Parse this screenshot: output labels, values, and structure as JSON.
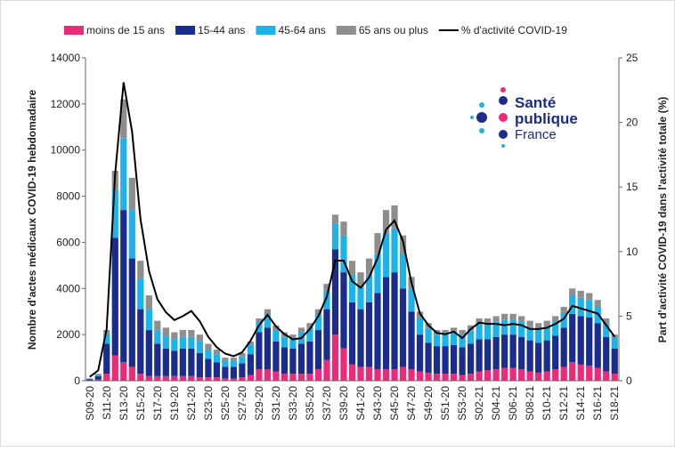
{
  "chart_data": {
    "type": "bar",
    "stacked": true,
    "y_label": "Nombre d'actes médicaux COVID-19 hebdomadaire",
    "y2_label": "Part d'activité COVID-19 dans l'activité totale (%)",
    "logo": {
      "line1": "Santé",
      "line2": "publique",
      "line3": "France"
    },
    "categories": [
      "S09-20",
      null,
      "S11-20",
      null,
      "S13-20",
      null,
      "S15-20",
      null,
      "S17-20",
      null,
      "S19-20",
      null,
      "S21-20",
      null,
      "S23-20",
      null,
      "S25-20",
      null,
      "S27-20",
      null,
      "S29-20",
      null,
      "S31-20",
      null,
      "S33-20",
      null,
      "S35-20",
      null,
      "S37-20",
      null,
      "S39-20",
      null,
      "S41-20",
      null,
      "S43-20",
      null,
      "S45-20",
      null,
      "S47-20",
      null,
      "S49-20",
      null,
      "S51-20",
      null,
      "S53-20",
      null,
      "S02-21",
      null,
      "S04-21",
      null,
      "S06-21",
      null,
      "S08-21",
      null,
      "S10-21",
      null,
      "S12-21",
      null,
      "S14-21",
      null,
      "S16-21",
      null,
      "S18-21"
    ],
    "series": [
      {
        "name": "moins de 15 ans",
        "color": "#ec2a7a",
        "values": [
          20,
          50,
          300,
          1100,
          800,
          600,
          300,
          200,
          200,
          200,
          200,
          200,
          200,
          150,
          150,
          150,
          100,
          100,
          150,
          250,
          500,
          500,
          400,
          300,
          300,
          300,
          300,
          500,
          900,
          2000,
          1400,
          700,
          600,
          600,
          500,
          500,
          500,
          600,
          500,
          400,
          350,
          300,
          300,
          300,
          250,
          300,
          400,
          450,
          500,
          550,
          550,
          500,
          400,
          350,
          400,
          500,
          600,
          800,
          700,
          650,
          550,
          400,
          300
        ]
      },
      {
        "name": "15-44 ans",
        "color": "#1b2d8c",
        "values": [
          50,
          150,
          1300,
          5100,
          6600,
          4700,
          2800,
          2000,
          1400,
          1200,
          1100,
          1200,
          1200,
          1050,
          800,
          650,
          500,
          500,
          600,
          900,
          1600,
          1800,
          1300,
          1150,
          1100,
          1300,
          1400,
          1700,
          2200,
          3700,
          3300,
          2700,
          2500,
          2800,
          3300,
          4000,
          4200,
          3400,
          2500,
          1600,
          1300,
          1200,
          1200,
          1250,
          1200,
          1300,
          1400,
          1350,
          1400,
          1450,
          1450,
          1400,
          1350,
          1300,
          1350,
          1450,
          1700,
          2100,
          2100,
          2100,
          1950,
          1500,
          1100
        ]
      },
      {
        "name": "45-64 ans",
        "color": "#1cb2ea",
        "values": [
          20,
          70,
          450,
          2100,
          3100,
          2100,
          1300,
          900,
          600,
          550,
          500,
          500,
          500,
          500,
          400,
          350,
          250,
          250,
          300,
          400,
          450,
          550,
          500,
          450,
          400,
          500,
          550,
          650,
          800,
          1100,
          1600,
          1200,
          1000,
          1200,
          1700,
          1900,
          1900,
          1500,
          1000,
          700,
          600,
          500,
          500,
          550,
          550,
          550,
          650,
          650,
          650,
          650,
          650,
          650,
          600,
          600,
          600,
          600,
          650,
          800,
          800,
          750,
          700,
          550,
          450
        ]
      },
      {
        "name": "65 ans ou plus",
        "color": "#8e8e8e",
        "values": [
          10,
          30,
          150,
          800,
          1700,
          1400,
          800,
          600,
          400,
          350,
          300,
          300,
          300,
          300,
          250,
          200,
          150,
          150,
          150,
          150,
          150,
          250,
          200,
          200,
          200,
          200,
          250,
          250,
          300,
          400,
          600,
          600,
          600,
          700,
          900,
          1000,
          1000,
          800,
          500,
          300,
          250,
          200,
          200,
          200,
          200,
          250,
          250,
          250,
          250,
          250,
          250,
          250,
          250,
          250,
          250,
          250,
          250,
          300,
          300,
          300,
          300,
          250,
          150
        ]
      },
      {
        "name": "% d'activité COVID-19",
        "type": "line",
        "axis": "y2",
        "color": "#000000",
        "values": [
          0.3,
          0.8,
          4,
          16,
          23.1,
          19.3,
          12.5,
          8.5,
          6.3,
          5.3,
          4.7,
          5.0,
          5.4,
          4.6,
          3.4,
          2.6,
          2.1,
          1.9,
          2.2,
          3.1,
          4.3,
          5.1,
          4.2,
          3.6,
          3.2,
          3.3,
          4.0,
          5.0,
          6.5,
          9.3,
          9.3,
          7.7,
          7.2,
          8.0,
          9.5,
          11.7,
          12.4,
          10.8,
          7.6,
          5.2,
          4.3,
          3.7,
          3.6,
          3.8,
          3.3,
          4.0,
          4.5,
          4.4,
          4.4,
          4.3,
          4.4,
          4.3,
          4.0,
          4.0,
          4.1,
          4.4,
          4.8,
          5.8,
          5.6,
          5.4,
          5.2,
          4.3,
          3.4
        ]
      }
    ],
    "ylim": [
      0,
      14000
    ],
    "yticks": [
      0,
      2000,
      4000,
      6000,
      8000,
      10000,
      12000,
      14000
    ],
    "y2lim": [
      0,
      25
    ],
    "y2ticks": [
      0,
      5,
      10,
      15,
      20,
      25
    ],
    "legend": "top"
  }
}
